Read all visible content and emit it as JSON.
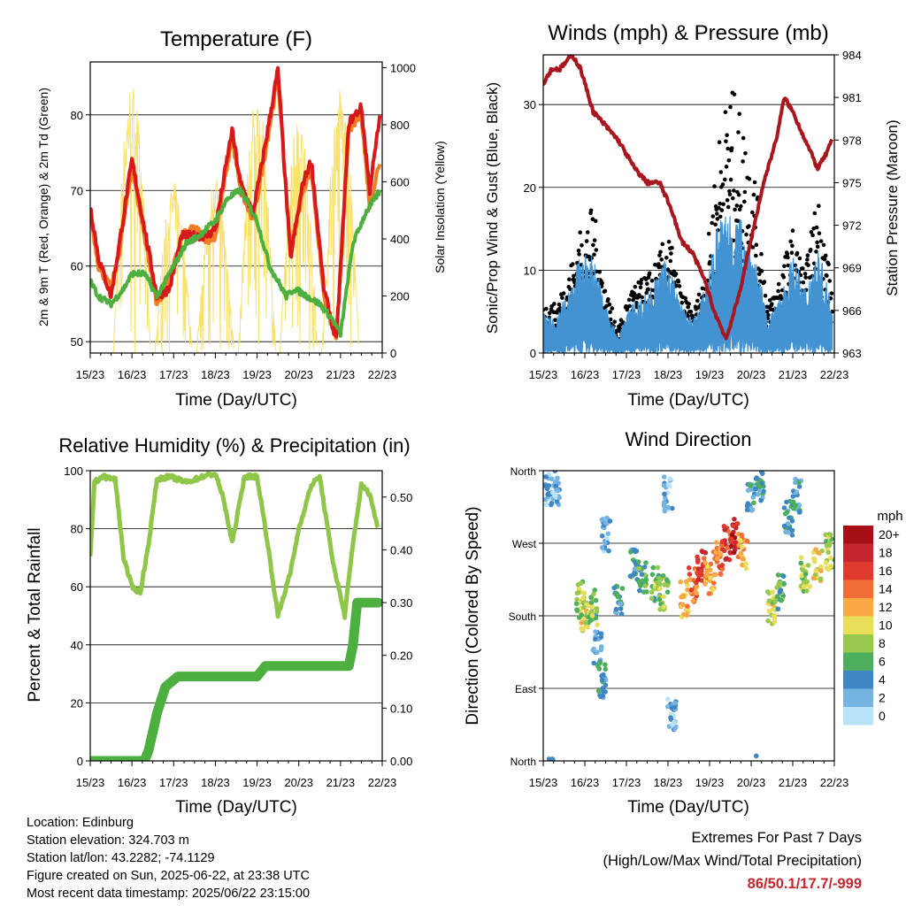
{
  "time_ticks": [
    "15/23",
    "16/23",
    "17/23",
    "18/23",
    "19/23",
    "20/23",
    "21/23",
    "22/23"
  ],
  "colors": {
    "temp2m": "#f37b21",
    "temp9m": "#d7191c",
    "dewpoint": "#4daf3f",
    "solar": "#f8e16c",
    "wind": "#4393d3",
    "gust": "#000000",
    "pressure": "#a8161e",
    "rh": "#8fc549",
    "precip": "#4daf3f"
  },
  "chart_data": [
    {
      "type": "line",
      "title": "Temperature (F)",
      "xlabel": "Time (Day/UTC)",
      "ylabel": "2m & 9m T (Red, Orange) & 2m Td (Green)",
      "y2label": "Solar Insolation (Yellow)",
      "ylim": [
        48.5,
        87
      ],
      "y2lim": [
        0,
        1020
      ],
      "yticks": [
        "50",
        "60",
        "70",
        "80"
      ],
      "y2ticks": [
        "0",
        "200",
        "400",
        "600",
        "800",
        "1000"
      ],
      "grid": "y",
      "x_unit": "days since 15/23",
      "series": [
        {
          "name": "2m T",
          "x": [
            0,
            0.2,
            0.5,
            0.7,
            1,
            1.3,
            1.6,
            1.9,
            2.2,
            2.5,
            2.8,
            3,
            3.4,
            3.6,
            3.9,
            4.1,
            4.5,
            4.8,
            5.1,
            5.3,
            5.6,
            5.9,
            6.2,
            6.5,
            6.7,
            6.95
          ],
          "y": [
            67,
            60,
            57,
            62,
            73,
            64,
            55,
            58,
            64,
            65,
            63.5,
            64,
            77,
            70,
            66,
            72,
            85,
            62,
            70,
            73,
            56,
            50,
            78,
            80,
            68,
            74
          ]
        },
        {
          "name": "9m T",
          "x": [
            0,
            0.2,
            0.5,
            0.7,
            1,
            1.3,
            1.6,
            1.9,
            2.2,
            2.5,
            2.8,
            3,
            3.4,
            3.6,
            3.9,
            4.1,
            4.5,
            4.8,
            5.1,
            5.3,
            5.6,
            5.9,
            6.2,
            6.5,
            6.7,
            6.95
          ],
          "y": [
            68,
            61,
            56,
            63,
            74,
            65,
            56,
            57,
            64,
            64,
            64,
            65,
            78,
            71,
            67,
            73,
            86,
            61,
            71,
            74,
            57,
            50.1,
            79,
            81,
            70,
            80
          ]
        },
        {
          "name": "2m Td",
          "x": [
            0,
            0.2,
            0.5,
            0.8,
            1,
            1.3,
            1.6,
            2,
            2.3,
            2.6,
            3,
            3.3,
            3.6,
            4,
            4.3,
            4.7,
            4.9,
            5.2,
            5.5,
            5.8,
            6.0,
            6.3,
            6.6,
            6.95
          ],
          "y": [
            58,
            56,
            55,
            57,
            59,
            59,
            56,
            60,
            63,
            64,
            66,
            69,
            70,
            66,
            60,
            56,
            57,
            56,
            55,
            53,
            51,
            63,
            67,
            70
          ]
        }
      ],
      "solar_peaks": [
        {
          "x": 1.0,
          "y": 960
        },
        {
          "x": 2.0,
          "y": 600
        },
        {
          "x": 3.0,
          "y": 620
        },
        {
          "x": 4.0,
          "y": 920
        },
        {
          "x": 5.0,
          "y": 860
        },
        {
          "x": 6.0,
          "y": 940
        }
      ]
    },
    {
      "type": "scatter",
      "title": "Winds (mph) & Pressure (mb)",
      "xlabel": "Time (Day/UTC)",
      "ylabel": "Sonic/Prop Wind & Gust (Blue, Black)",
      "y2label": "Station Pressure (Maroon)",
      "ylim": [
        0,
        36
      ],
      "y2lim": [
        963,
        984
      ],
      "yticks": [
        "0",
        "10",
        "20",
        "30"
      ],
      "y2ticks": [
        "963",
        "966",
        "969",
        "972",
        "975",
        "978",
        "981",
        "984"
      ],
      "grid": "y",
      "series": [
        {
          "name": "Station Pressure",
          "x": [
            0,
            0.2,
            0.4,
            0.7,
            0.9,
            1.2,
            1.5,
            1.8,
            2.2,
            2.5,
            2.8,
            3.1,
            3.3,
            3.6,
            3.9,
            4.1,
            4.4,
            4.7,
            5.0,
            5.3,
            5.6,
            5.8,
            6.0,
            6.3,
            6.6,
            6.8,
            6.95
          ],
          "y": [
            982,
            983,
            983,
            984,
            983,
            980,
            979,
            978,
            976,
            975,
            975,
            973,
            971,
            970,
            968,
            966,
            964,
            967,
            971,
            975,
            978,
            981,
            980,
            978,
            976,
            977,
            978
          ]
        }
      ],
      "wind_envelope": {
        "x": [
          0,
          0.3,
          0.6,
          0.9,
          1.2,
          1.5,
          1.8,
          2.1,
          2.4,
          2.7,
          3.0,
          3.3,
          3.6,
          3.9,
          4.2,
          4.5,
          4.8,
          5.1,
          5.4,
          5.7,
          6.0,
          6.3,
          6.6,
          6.95
        ],
        "gust_max": [
          6,
          6,
          10,
          15,
          18,
          8,
          3,
          8,
          9,
          11,
          15,
          8,
          5,
          10,
          26,
          33,
          28,
          22,
          6,
          10,
          15,
          10,
          20,
          8
        ],
        "wind_max": [
          5,
          4,
          8,
          12,
          12,
          6,
          2,
          6,
          7,
          9,
          12,
          6,
          4,
          8,
          16,
          18,
          16,
          12,
          4,
          7,
          12,
          8,
          13,
          6
        ]
      }
    },
    {
      "type": "line",
      "title": "Relative Humidity (%) & Precipitation (in)",
      "xlabel": "Time (Day/UTC)",
      "ylabel": "Percent & Total Rainfall",
      "ylim": [
        0,
        100
      ],
      "y2lim": [
        0,
        0.55
      ],
      "yticks": [
        "0",
        "20",
        "40",
        "60",
        "80",
        "100"
      ],
      "y2ticks": [
        "0.00",
        "0.10",
        "0.20",
        "0.30",
        "0.40",
        "0.50"
      ],
      "grid": "y",
      "series": [
        {
          "name": "Relative Humidity",
          "x": [
            0,
            0.1,
            0.3,
            0.6,
            0.8,
            1.0,
            1.2,
            1.4,
            1.6,
            1.9,
            2.3,
            2.7,
            3.0,
            3.2,
            3.4,
            3.7,
            4.0,
            4.2,
            4.5,
            4.8,
            5.0,
            5.3,
            5.5,
            5.8,
            6.1,
            6.3,
            6.5,
            6.7,
            6.9
          ],
          "y": [
            70,
            96,
            98,
            97,
            70,
            60,
            58,
            75,
            97,
            98,
            96,
            98,
            99,
            90,
            75,
            98,
            98,
            80,
            50,
            65,
            80,
            95,
            98,
            70,
            50,
            75,
            95,
            92,
            80
          ]
        },
        {
          "name": "Total Precipitation",
          "x": [
            0,
            1.3,
            1.4,
            1.6,
            1.8,
            2.1,
            2.5,
            3.0,
            3.5,
            4.0,
            4.2,
            4.5,
            5.0,
            5.5,
            6.0,
            6.2,
            6.3,
            6.4,
            6.6,
            6.9
          ],
          "y": [
            0,
            0,
            0.02,
            0.09,
            0.14,
            0.16,
            0.16,
            0.16,
            0.16,
            0.16,
            0.18,
            0.18,
            0.18,
            0.18,
            0.18,
            0.18,
            0.22,
            0.3,
            0.3,
            0.3
          ]
        }
      ]
    },
    {
      "type": "scatter",
      "title": "Wind Direction",
      "xlabel": "Time (Day/UTC)",
      "ylabel": "Direction (Colored By Speed)",
      "yticks": [
        "North",
        "East",
        "South",
        "West",
        "North"
      ],
      "grid": "y",
      "legend": {
        "title": "mph",
        "labels": [
          "20+",
          "18",
          "16",
          "14",
          "12",
          "10",
          "8",
          "6",
          "4",
          "2",
          "0"
        ],
        "colors": [
          "#a50f15",
          "#c4262e",
          "#de3a2d",
          "#f16d37",
          "#f9a747",
          "#e9de5a",
          "#98c84e",
          "#4daf5d",
          "#3f86c4",
          "#75b4e1",
          "#b9e3f7"
        ],
        "placement": "right"
      },
      "clusters": [
        {
          "x": 0.15,
          "dir": 340,
          "speed": 3
        },
        {
          "x": 0.3,
          "dir": 340,
          "speed": 2
        },
        {
          "x": 0.9,
          "dir": 200,
          "speed": 8
        },
        {
          "x": 1.0,
          "dir": 180,
          "speed": 9
        },
        {
          "x": 1.2,
          "dir": 190,
          "speed": 7
        },
        {
          "x": 1.3,
          "dir": 140,
          "speed": 3
        },
        {
          "x": 1.4,
          "dir": 100,
          "speed": 4
        },
        {
          "x": 1.5,
          "dir": 280,
          "speed": 2
        },
        {
          "x": 1.8,
          "dir": 200,
          "speed": 4
        },
        {
          "x": 2.2,
          "dir": 240,
          "speed": 5
        },
        {
          "x": 2.4,
          "dir": 230,
          "speed": 6
        },
        {
          "x": 2.7,
          "dir": 220,
          "speed": 7
        },
        {
          "x": 2.9,
          "dir": 210,
          "speed": 8
        },
        {
          "x": 3.0,
          "dir": 330,
          "speed": 2
        },
        {
          "x": 3.1,
          "dir": 60,
          "speed": 2
        },
        {
          "x": 3.4,
          "dir": 200,
          "speed": 11
        },
        {
          "x": 3.6,
          "dir": 220,
          "speed": 14
        },
        {
          "x": 3.8,
          "dir": 240,
          "speed": 16
        },
        {
          "x": 4.0,
          "dir": 230,
          "speed": 12
        },
        {
          "x": 4.2,
          "dir": 250,
          "speed": 14
        },
        {
          "x": 4.4,
          "dir": 270,
          "speed": 16
        },
        {
          "x": 4.6,
          "dir": 280,
          "speed": 18
        },
        {
          "x": 4.8,
          "dir": 260,
          "speed": 12
        },
        {
          "x": 5.0,
          "dir": 330,
          "speed": 4
        },
        {
          "x": 5.2,
          "dir": 345,
          "speed": 4
        },
        {
          "x": 5.5,
          "dir": 190,
          "speed": 9
        },
        {
          "x": 5.7,
          "dir": 210,
          "speed": 6
        },
        {
          "x": 5.9,
          "dir": 300,
          "speed": 4
        },
        {
          "x": 6.1,
          "dir": 330,
          "speed": 4
        },
        {
          "x": 6.3,
          "dir": 230,
          "speed": 8
        },
        {
          "x": 6.6,
          "dir": 240,
          "speed": 10
        },
        {
          "x": 6.9,
          "dir": 260,
          "speed": 8
        }
      ]
    }
  ],
  "info": {
    "location": "Location: Edinburg",
    "elevation": "Station elevation: 324.703 m",
    "latlon": "Station lat/lon: 43.2282; -74.1129",
    "created": "Figure created on Sun, 2025-06-22, at 23:38 UTC",
    "recent": "Most recent data timestamp: 2025/06/22 23:15:00",
    "extremes_title": "Extremes For Past 7 Days",
    "extremes_subtitle": "(High/Low/Max Wind/Total Precipitation)",
    "extremes_values": "86/50.1/17.7/-999"
  }
}
